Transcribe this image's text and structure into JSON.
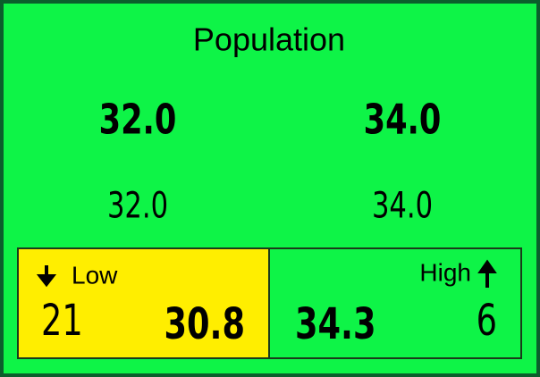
{
  "title": "Population",
  "primary": [
    "32.0",
    "34.0"
  ],
  "secondary": [
    "32.0",
    "34.0"
  ],
  "low": {
    "label": "Low",
    "count": "21",
    "value": "30.8"
  },
  "high": {
    "label": "High",
    "count": "6",
    "value": "34.3"
  }
}
